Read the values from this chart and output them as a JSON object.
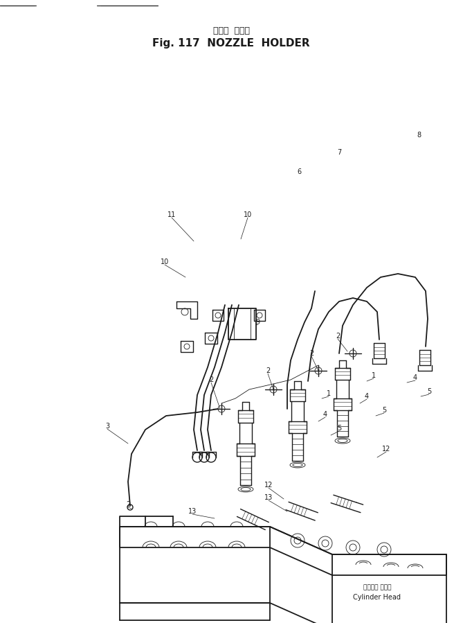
{
  "title_japanese": "ノズル  ホルダ",
  "title_english": "Fig. 117  NOZZLE  HOLDER",
  "bg_color": "#ffffff",
  "line_color": "#1a1a1a",
  "cylinder_head_jp": "シリンダ ヘッド",
  "cylinder_head_en": "Cylinder Head",
  "figsize": [
    6.69,
    8.99
  ],
  "dpi": 100
}
